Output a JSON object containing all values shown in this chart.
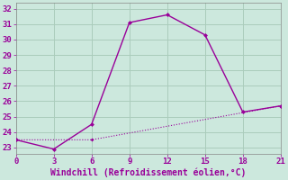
{
  "xlabel": "Windchill (Refroidissement éolien,°C)",
  "bg_color": "#cce8dd",
  "line_color": "#990099",
  "grid_color": "#aaccbb",
  "line1_x": [
    0,
    3,
    6,
    9,
    12,
    15,
    18,
    21
  ],
  "line1_y": [
    23.5,
    22.9,
    24.5,
    31.1,
    31.6,
    30.3,
    25.3,
    25.7
  ],
  "line2_x": [
    0,
    6,
    21
  ],
  "line2_y": [
    23.5,
    23.5,
    25.7
  ],
  "xlim": [
    0,
    21
  ],
  "ylim": [
    22.6,
    32.4
  ],
  "yticks": [
    23,
    24,
    25,
    26,
    27,
    28,
    29,
    30,
    31,
    32
  ],
  "xticks": [
    0,
    3,
    6,
    9,
    12,
    15,
    18,
    21
  ],
  "xlabel_fontsize": 7,
  "tick_fontsize": 6.5
}
